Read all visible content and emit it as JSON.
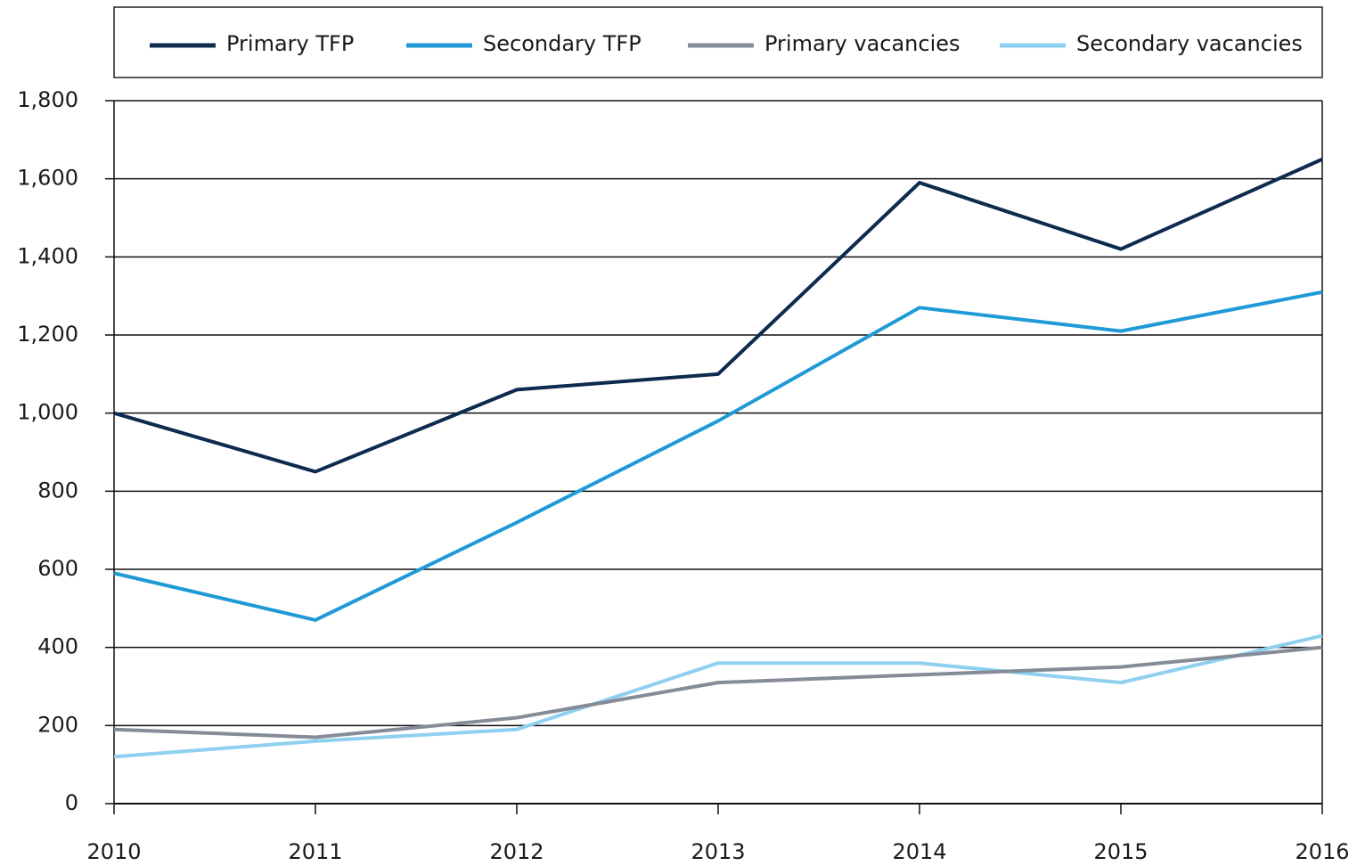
{
  "chart_data": {
    "type": "line",
    "x": [
      2010,
      2011,
      2012,
      2013,
      2014,
      2015,
      2016
    ],
    "xlim": [
      2010,
      2016
    ],
    "xticks": [
      2010,
      2011,
      2012,
      2013,
      2014,
      2015,
      2016
    ],
    "ylim": [
      0,
      1800
    ],
    "yticks": [
      0,
      {
        "value": 200,
        "label": "200"
      },
      400,
      600,
      800,
      {
        "value": 1000,
        "label": "1,000"
      },
      {
        "value": 1200,
        "label": "1,200"
      },
      {
        "value": 1400,
        "label": "1,400"
      },
      {
        "value": 1600,
        "label": "1,600"
      },
      {
        "value": 1800,
        "label": "1,800"
      }
    ],
    "grid": true,
    "legend": "top",
    "series": [
      {
        "name": "Primary TFP",
        "color": "#0d2a4f",
        "values": [
          1000,
          850,
          1060,
          1100,
          1590,
          1420,
          1650
        ]
      },
      {
        "name": "Secondary TFP",
        "color": "#1f9ad6",
        "values": [
          590,
          470,
          720,
          980,
          1270,
          1210,
          1310
        ]
      },
      {
        "name": "Primary vacancies",
        "color": "#858b97",
        "values": [
          190,
          170,
          220,
          310,
          330,
          350,
          400
        ]
      },
      {
        "name": "Secondary vacancies",
        "color": "#8fd0f0",
        "values": [
          120,
          160,
          190,
          360,
          360,
          310,
          430
        ]
      }
    ]
  }
}
